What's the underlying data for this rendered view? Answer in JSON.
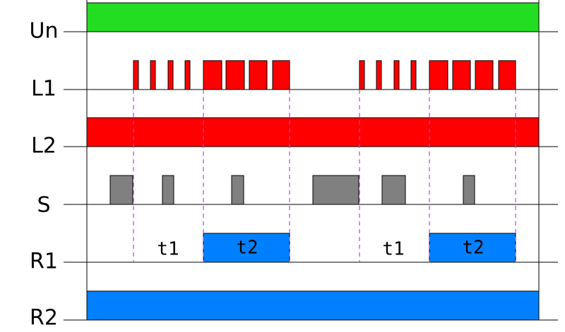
{
  "signals": [
    "Un",
    "L1",
    "L2",
    "S",
    "R1",
    "R2"
  ],
  "intervals": [
    "t1",
    "t2",
    "t1",
    "t2"
  ]
}
